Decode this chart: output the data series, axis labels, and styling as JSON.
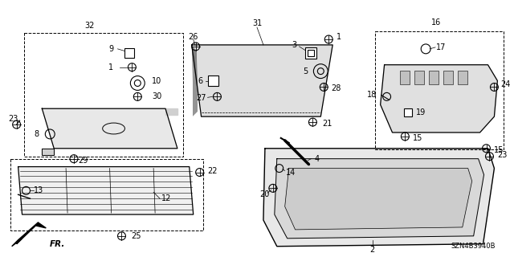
{
  "background_color": "#ffffff",
  "diagram_code": "SZN4B3940B",
  "line_color": "#000000",
  "text_color": "#000000",
  "font_size": 7.0
}
